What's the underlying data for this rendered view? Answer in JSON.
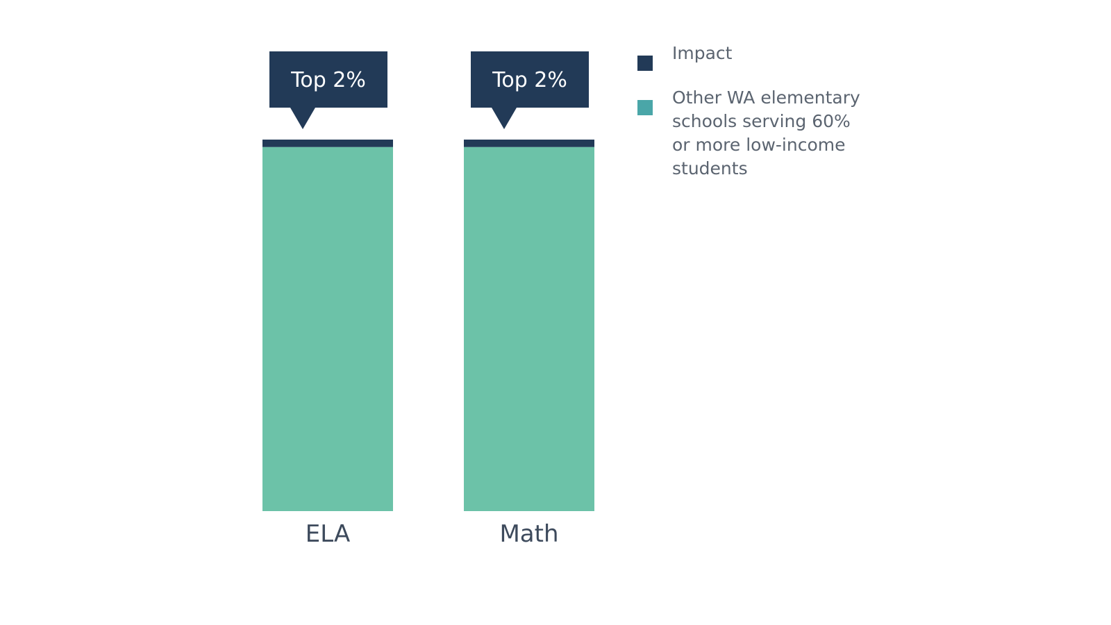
{
  "chart_data": {
    "type": "bar",
    "stacked": true,
    "categories": [
      "ELA",
      "Math"
    ],
    "ylim": [
      0,
      100
    ],
    "series": [
      {
        "name": "Other WA elementary schools serving 60% or more low-income students",
        "values": [
          98,
          98
        ],
        "color": "#6cc2a8"
      },
      {
        "name": "Impact",
        "values": [
          2,
          2
        ],
        "color": "#223a57"
      }
    ],
    "annotations": [
      {
        "category": "ELA",
        "text": "Top 2%"
      },
      {
        "category": "Math",
        "text": "Top 2%"
      }
    ],
    "legend": {
      "placement": "top-right",
      "items": [
        {
          "label": "Impact",
          "color": "#223a57"
        },
        {
          "label": "Other WA elementary schools serving 60% or more low-income students",
          "color": "#4aa6a8"
        }
      ]
    },
    "grid": false
  }
}
